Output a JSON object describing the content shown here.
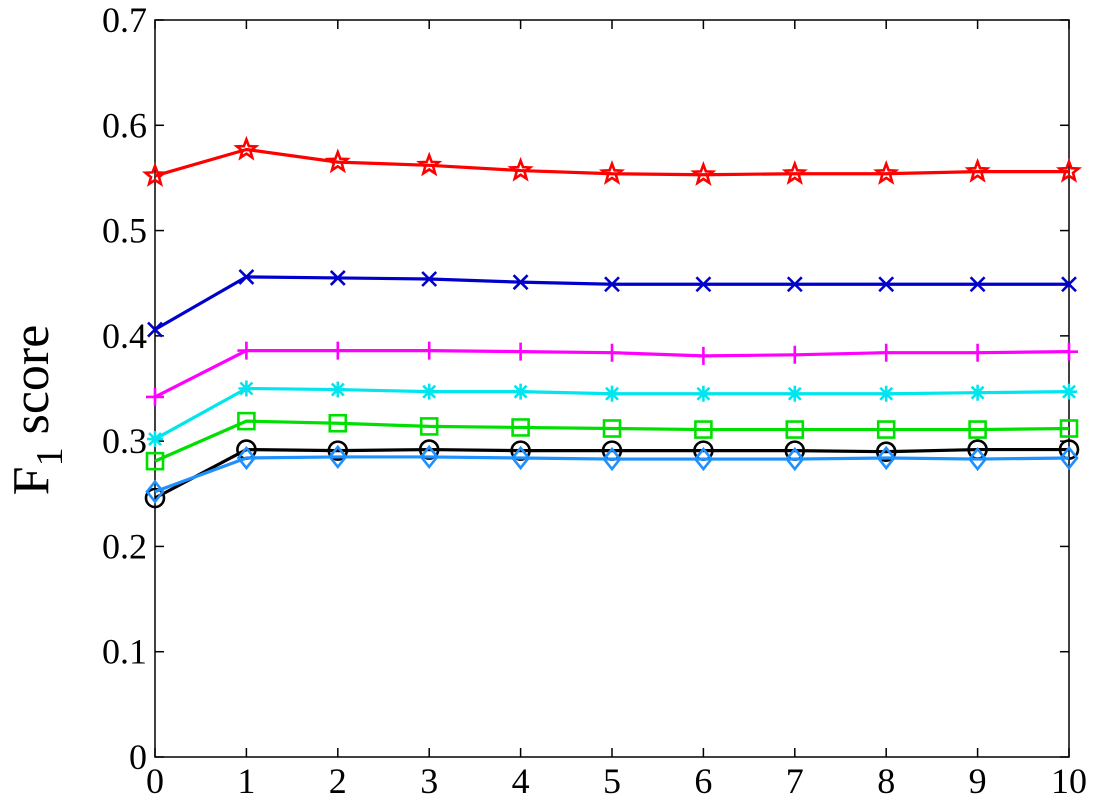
{
  "chart_data": {
    "type": "line",
    "title": "",
    "xlabel": "",
    "ylabel_main": "F",
    "ylabel_sub": "1",
    "ylabel_rest": " score",
    "xlim": [
      0,
      10
    ],
    "ylim": [
      0,
      0.7
    ],
    "xticks": [
      "0",
      "1",
      "2",
      "3",
      "4",
      "5",
      "6",
      "7",
      "8",
      "9",
      "10"
    ],
    "yticks": [
      "0",
      "0.1",
      "0.2",
      "0.3",
      "0.4",
      "0.5",
      "0.6",
      "0.7"
    ],
    "grid": false,
    "x": [
      0,
      1,
      2,
      3,
      4,
      5,
      6,
      7,
      8,
      9,
      10
    ],
    "series": [
      {
        "color": "#ff0000",
        "marker": "star",
        "values": [
          0.552,
          0.577,
          0.565,
          0.562,
          0.557,
          0.554,
          0.553,
          0.554,
          0.554,
          0.556,
          0.556
        ]
      },
      {
        "color": "#0000cc",
        "marker": "x",
        "values": [
          0.406,
          0.456,
          0.455,
          0.454,
          0.451,
          0.449,
          0.449,
          0.449,
          0.449,
          0.449,
          0.449
        ]
      },
      {
        "color": "#ff00ff",
        "marker": "plus",
        "values": [
          0.342,
          0.386,
          0.386,
          0.386,
          0.385,
          0.384,
          0.381,
          0.382,
          0.384,
          0.384,
          0.385
        ]
      },
      {
        "color": "#00e5ee",
        "marker": "asterisk",
        "values": [
          0.302,
          0.35,
          0.349,
          0.347,
          0.347,
          0.345,
          0.345,
          0.345,
          0.345,
          0.346,
          0.347
        ]
      },
      {
        "color": "#00e000",
        "marker": "square",
        "values": [
          0.281,
          0.319,
          0.317,
          0.314,
          0.313,
          0.312,
          0.311,
          0.311,
          0.311,
          0.311,
          0.312
        ]
      },
      {
        "color": "#000000",
        "marker": "circle",
        "values": [
          0.246,
          0.292,
          0.291,
          0.292,
          0.291,
          0.291,
          0.291,
          0.291,
          0.29,
          0.292,
          0.292
        ]
      },
      {
        "color": "#1e90ff",
        "marker": "diamond",
        "values": [
          0.252,
          0.284,
          0.285,
          0.285,
          0.284,
          0.283,
          0.283,
          0.283,
          0.284,
          0.283,
          0.284
        ]
      }
    ]
  }
}
